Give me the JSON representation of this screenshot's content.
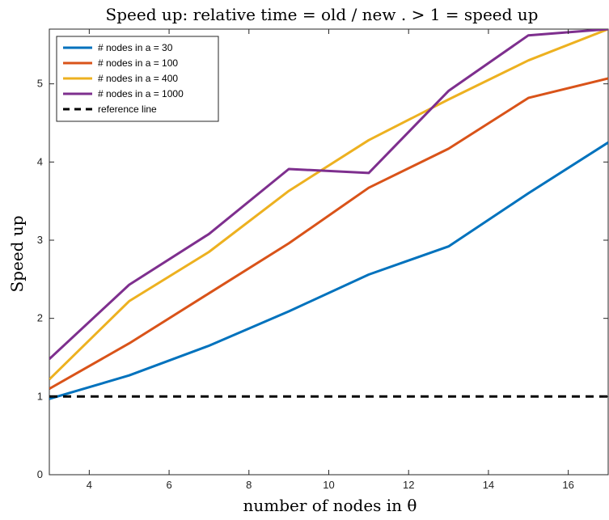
{
  "chart_data": {
    "type": "line",
    "title": "Speed up: relative time = old / new . > 1 = speed up",
    "xlabel": "number of nodes in θ",
    "ylabel": "Speed up",
    "xlim": [
      3,
      17
    ],
    "ylim": [
      0,
      5.7
    ],
    "xticks": [
      4,
      6,
      8,
      10,
      12,
      14,
      16
    ],
    "yticks": [
      0,
      1,
      2,
      3,
      4,
      5
    ],
    "x": [
      3,
      5,
      7,
      9,
      11,
      13,
      15,
      17
    ],
    "grid": false,
    "legend_position": "top-left",
    "series": [
      {
        "name": "# nodes in a = 30",
        "color": "#0072BD",
        "style": "solid",
        "values": [
          0.97,
          1.27,
          1.65,
          2.09,
          2.56,
          2.92,
          3.6,
          4.25
        ]
      },
      {
        "name": "# nodes in a = 100",
        "color": "#D95319",
        "style": "solid",
        "values": [
          1.1,
          1.68,
          2.32,
          2.96,
          3.67,
          4.17,
          4.82,
          5.07
        ]
      },
      {
        "name": "# nodes in a = 400",
        "color": "#EDB120",
        "style": "solid",
        "values": [
          1.22,
          2.22,
          2.85,
          3.63,
          4.28,
          4.8,
          5.3,
          5.7
        ]
      },
      {
        "name": "# nodes in a = 1000",
        "color": "#7E2F8E",
        "style": "solid",
        "values": [
          1.48,
          2.43,
          3.08,
          3.91,
          3.86,
          4.91,
          5.62,
          5.7
        ]
      },
      {
        "name": "reference line",
        "color": "#000000",
        "style": "dashed",
        "values": [
          1,
          1,
          1,
          1,
          1,
          1,
          1,
          1
        ]
      }
    ]
  }
}
